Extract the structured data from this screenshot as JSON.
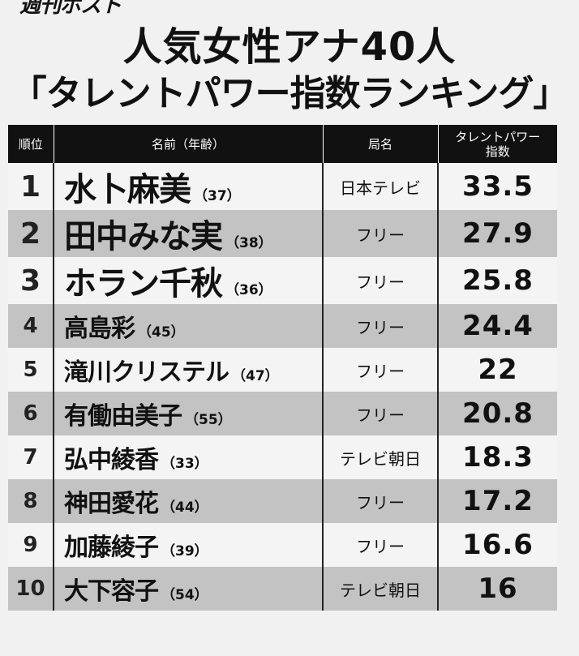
{
  "magazine_fragment": "週刊ポスト",
  "title_line1": "人気女性アナ40人",
  "title_line2": "「タレントパワー指数ランキング」",
  "headers": {
    "rank": "順位",
    "name": "名前（年齢）",
    "station": "局名",
    "power_line1": "タレントパワー",
    "power_line2": "指数"
  },
  "rows": [
    {
      "rank": "1",
      "name": "水卜麻美",
      "age": "（37）",
      "station": "日本テレビ",
      "score": "33.5"
    },
    {
      "rank": "2",
      "name": "田中みな実",
      "age": "（38）",
      "station": "フリー",
      "score": "27.9"
    },
    {
      "rank": "3",
      "name": "ホラン千秋",
      "age": "（36）",
      "station": "フリー",
      "score": "25.8"
    },
    {
      "rank": "4",
      "name": "高島彩",
      "age": "（45）",
      "station": "フリー",
      "score": "24.4"
    },
    {
      "rank": "5",
      "name": "滝川クリステル",
      "age": "（47）",
      "station": "フリー",
      "score": "22"
    },
    {
      "rank": "6",
      "name": "有働由美子",
      "age": "（55）",
      "station": "フリー",
      "score": "20.8"
    },
    {
      "rank": "7",
      "name": "弘中綾香",
      "age": "（33）",
      "station": "テレビ朝日",
      "score": "18.3"
    },
    {
      "rank": "8",
      "name": "神田愛花",
      "age": "（44）",
      "station": "フリー",
      "score": "17.2"
    },
    {
      "rank": "9",
      "name": "加藤綾子",
      "age": "（39）",
      "station": "フリー",
      "score": "16.6"
    },
    {
      "rank": "10",
      "name": "大下容子",
      "age": "（54）",
      "station": "テレビ朝日",
      "score": "16"
    }
  ]
}
